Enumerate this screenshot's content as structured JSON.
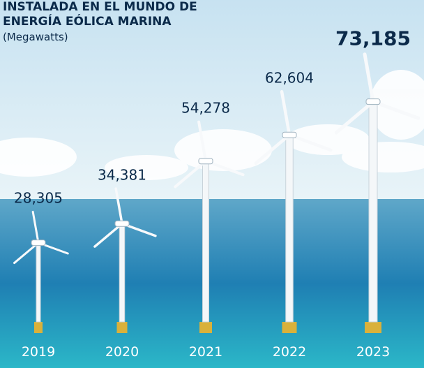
{
  "chart_data": {
    "type": "turbine",
    "title": "INSTALADA EN EL MUNDO DE ENERGÍA EÓLICA MARINA",
    "subtitle": "(Megawatts)",
    "categories": [
      "2019",
      "2020",
      "2021",
      "2022",
      "2023"
    ],
    "values": [
      28305,
      34381,
      54278,
      62604,
      73185
    ],
    "value_labels": [
      "28,305",
      "34,381",
      "54,278",
      "62,604",
      "73,185"
    ]
  }
}
